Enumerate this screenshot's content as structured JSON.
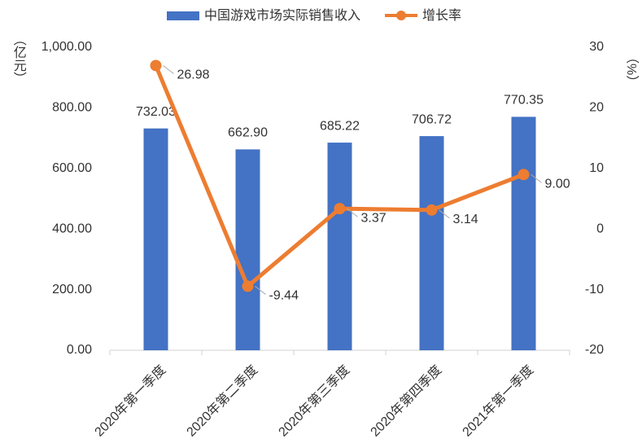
{
  "chart_data": {
    "type": "bar_line",
    "categories": [
      "2020年第一季度",
      "2020年第二季度",
      "2020年第三季度",
      "2020年第四季度",
      "2021年第一季度"
    ],
    "series": [
      {
        "name": "中国游戏市场实际销售收入",
        "type": "bar",
        "color": "#4472c4",
        "values": [
          732.03,
          662.9,
          685.22,
          706.72,
          770.35
        ],
        "value_labels": [
          "732.03",
          "662.90",
          "685.22",
          "706.72",
          "770.35"
        ]
      },
      {
        "name": "增长率",
        "type": "line",
        "axis": "y2",
        "color": "#ed7d31",
        "values": [
          26.98,
          -9.44,
          3.37,
          3.14,
          9.0
        ],
        "value_labels": [
          "26.98",
          "-9.44",
          "3.37",
          "3.14",
          "9.00"
        ]
      }
    ],
    "y_label": "（亿元）",
    "y2_label": "（%）",
    "ylim": [
      0,
      1000
    ],
    "yticks": [
      {
        "value": 0,
        "label": "0.00"
      },
      {
        "value": 200,
        "label": "200.00"
      },
      {
        "value": 400,
        "label": "400.00"
      },
      {
        "value": 600,
        "label": "600.00"
      },
      {
        "value": 800,
        "label": "800.00"
      },
      {
        "value": 1000,
        "label": "1,000.00"
      }
    ],
    "y2lim": [
      -20,
      30
    ],
    "y2ticks": [
      -20,
      -10,
      0,
      10,
      20,
      30
    ],
    "legend": "top"
  }
}
